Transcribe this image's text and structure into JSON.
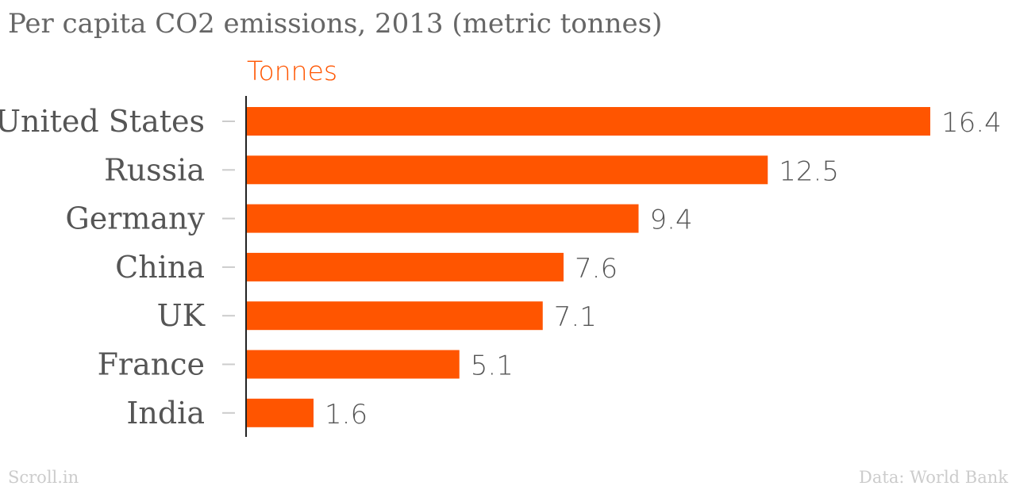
{
  "title": "Per capita CO2 emissions, 2013 (metric tonnes)",
  "footer": {
    "source_left": "Scroll.in",
    "source_right": "Data: World Bank"
  },
  "colors": {
    "bar": "#ff5500",
    "axis": "#222222",
    "tick": "#cccccc"
  },
  "chart_data": {
    "type": "bar",
    "orientation": "horizontal",
    "title": "Per capita CO2 emissions, 2013 (metric tonnes)",
    "categories": [
      "United States",
      "Russia",
      "Germany",
      "China",
      "UK",
      "France",
      "India"
    ],
    "series": [
      {
        "name": "Tonnes",
        "values": [
          16.4,
          12.5,
          9.4,
          7.6,
          7.1,
          5.1,
          1.6
        ]
      }
    ],
    "xlim": [
      0,
      16.4
    ],
    "grid": false,
    "data_labels": true
  }
}
